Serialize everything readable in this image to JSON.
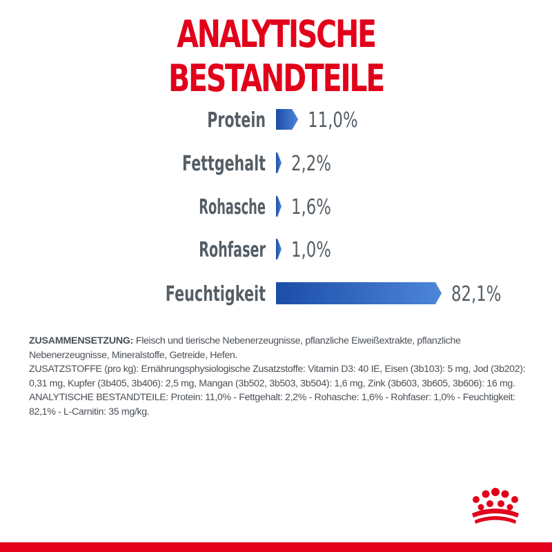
{
  "title": "ANALYTISCHE BESTANDTEILE",
  "chart_data": {
    "type": "bar",
    "categories": [
      "Protein",
      "Fettgehalt",
      "Rohasche",
      "Rohfaser",
      "Feuchtigkeit"
    ],
    "values": [
      11.0,
      2.2,
      1.6,
      1.0,
      82.1
    ],
    "value_labels": [
      "11,0%",
      "2,2%",
      "1,6%",
      "1,0%",
      "82,1%"
    ],
    "unit": "%",
    "xlim": [
      0,
      100
    ],
    "orientation": "horizontal",
    "grid": false,
    "legend": "none"
  },
  "description": {
    "composition_heading": "ZUSAMMENSETZUNG:",
    "composition_text": " Fleisch und tierische Nebenerzeugnisse, pflanzliche Eiweißextrakte, pflanzliche Nebenerzeugnisse, Mineralstoffe, Getreide, Hefen.",
    "additives_text": "ZUSATZSTOFFE (pro kg): Ernährungsphysiologische Zusatzstoffe: Vitamin D3: 40 IE, Eisen (3b103): 5 mg, Jod (3b202): 0,31 mg, Kupfer (3b405, 3b406): 2,5 mg, Mangan (3b502, 3b503, 3b504): 1,6 mg, Zink (3b603, 3b605, 3b606): 16 mg.",
    "analysis_text": "ANALYTISCHE BESTANDTEILE: Protein: 11,0% - Fettgehalt: 2,2% - Rohasche: 1,6% - Rohfaser: 1,0% - Feuchtigkeit: 82,1% - L-Carnitin: 35 mg/kg."
  },
  "colors": {
    "brand_red": "#e2001a",
    "bar_blue_dark": "#1c4da8",
    "bar_blue_light": "#4d86d8",
    "label_gray": "#555e66"
  },
  "icons": {
    "logo": "royal-crown-icon"
  }
}
